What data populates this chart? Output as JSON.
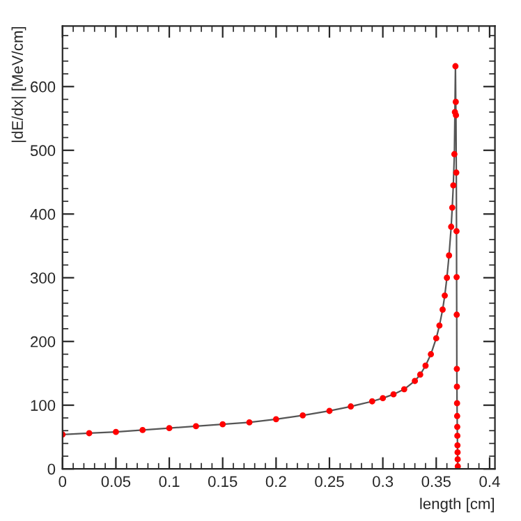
{
  "chart_data": {
    "type": "line",
    "xlabel": "length [cm]",
    "ylabel": "|dE/dx| [MeV/cm]",
    "x": [
      0,
      0.025,
      0.05,
      0.075,
      0.1,
      0.125,
      0.15,
      0.175,
      0.2,
      0.225,
      0.25,
      0.27,
      0.29,
      0.3,
      0.31,
      0.32,
      0.33,
      0.335,
      0.34,
      0.345,
      0.35,
      0.353,
      0.356,
      0.358,
      0.36,
      0.362,
      0.364,
      0.365,
      0.366,
      0.367,
      0.3675,
      0.368,
      0.3683,
      0.3685,
      0.3688,
      0.369,
      0.3691,
      0.3692,
      0.3693,
      0.3694,
      0.3695,
      0.3696,
      0.3697,
      0.3698,
      0.3699,
      0.37,
      0.3701,
      0.3702
    ],
    "series": [
      {
        "color": "#ff0000",
        "values": [
          54,
          56,
          58,
          61,
          64,
          67,
          70,
          73,
          78,
          84,
          91,
          98,
          106,
          111,
          117,
          125,
          138,
          148,
          162,
          180,
          205,
          225,
          250,
          272,
          300,
          335,
          380,
          410,
          445,
          494,
          560,
          632,
          576,
          555,
          465,
          373,
          301,
          242,
          157,
          129,
          103,
          83,
          66,
          52,
          37,
          26,
          15,
          4
        ]
      }
    ],
    "xlim": [
      0,
      0.405
    ],
    "ylim": [
      0,
      695
    ],
    "xticks": [
      0,
      0.05,
      0.1,
      0.15,
      0.2,
      0.25,
      0.3,
      0.35,
      0.4
    ],
    "yticks": [
      0,
      100,
      200,
      300,
      400,
      500,
      600
    ],
    "marker": "circle",
    "line_style": "solid",
    "grid": false,
    "legend": false
  }
}
